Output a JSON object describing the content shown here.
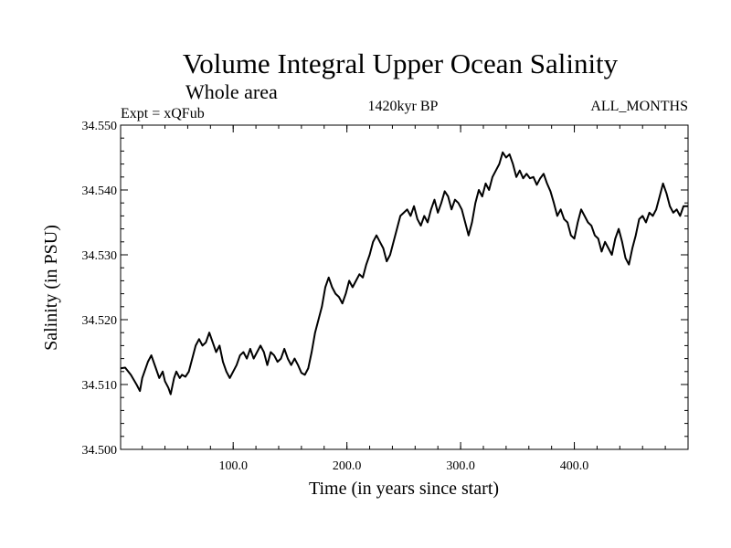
{
  "chart_data": {
    "type": "line",
    "title": "Volume Integral Upper Ocean Salinity",
    "subtitle": "Whole area",
    "experiment": "Expt = xQFub",
    "period": "1420kyr BP",
    "months": "ALL_MONTHS",
    "xlabel": "Time (in years since start)",
    "ylabel": "Salinity (in PSU)",
    "xlim": [
      1,
      500
    ],
    "ylim": [
      34.5,
      34.55
    ],
    "x_ticks": [
      {
        "value": 100,
        "label": "100.0"
      },
      {
        "value": 200,
        "label": "200.0"
      },
      {
        "value": 300,
        "label": "300.0"
      },
      {
        "value": 400,
        "label": "400.0"
      }
    ],
    "y_ticks": [
      {
        "value": 34.5,
        "label": "34.500"
      },
      {
        "value": 34.51,
        "label": "34.510"
      },
      {
        "value": 34.52,
        "label": "34.520"
      },
      {
        "value": 34.53,
        "label": "34.530"
      },
      {
        "value": 34.54,
        "label": "34.540"
      },
      {
        "value": 34.55,
        "label": "34.550"
      }
    ],
    "grid": false,
    "series": [
      {
        "name": "Salinity",
        "color": "#000000",
        "points": [
          [
            1,
            34.5125
          ],
          [
            5,
            34.5126
          ],
          [
            10,
            34.5115
          ],
          [
            15,
            34.51
          ],
          [
            18,
            34.509
          ],
          [
            20,
            34.511
          ],
          [
            25,
            34.5135
          ],
          [
            28,
            34.5145
          ],
          [
            32,
            34.5125
          ],
          [
            35,
            34.511
          ],
          [
            38,
            34.512
          ],
          [
            40,
            34.5105
          ],
          [
            43,
            34.5095
          ],
          [
            45,
            34.5085
          ],
          [
            48,
            34.511
          ],
          [
            50,
            34.512
          ],
          [
            53,
            34.511
          ],
          [
            55,
            34.5115
          ],
          [
            58,
            34.5112
          ],
          [
            61,
            34.512
          ],
          [
            64,
            34.514
          ],
          [
            67,
            34.516
          ],
          [
            70,
            34.517
          ],
          [
            73,
            34.516
          ],
          [
            76,
            34.5165
          ],
          [
            79,
            34.518
          ],
          [
            82,
            34.5165
          ],
          [
            85,
            34.515
          ],
          [
            88,
            34.516
          ],
          [
            91,
            34.5135
          ],
          [
            94,
            34.512
          ],
          [
            97,
            34.511
          ],
          [
            100,
            34.512
          ],
          [
            103,
            34.513
          ],
          [
            106,
            34.5145
          ],
          [
            109,
            34.515
          ],
          [
            112,
            34.514
          ],
          [
            115,
            34.5155
          ],
          [
            118,
            34.514
          ],
          [
            121,
            34.515
          ],
          [
            124,
            34.516
          ],
          [
            127,
            34.515
          ],
          [
            130,
            34.513
          ],
          [
            133,
            34.515
          ],
          [
            136,
            34.5145
          ],
          [
            139,
            34.5135
          ],
          [
            142,
            34.514
          ],
          [
            145,
            34.5155
          ],
          [
            148,
            34.514
          ],
          [
            151,
            34.513
          ],
          [
            154,
            34.514
          ],
          [
            157,
            34.513
          ],
          [
            160,
            34.5118
          ],
          [
            163,
            34.5115
          ],
          [
            166,
            34.5125
          ],
          [
            169,
            34.515
          ],
          [
            172,
            34.518
          ],
          [
            175,
            34.52
          ],
          [
            178,
            34.522
          ],
          [
            181,
            34.525
          ],
          [
            184,
            34.5265
          ],
          [
            187,
            34.525
          ],
          [
            190,
            34.524
          ],
          [
            193,
            34.5235
          ],
          [
            196,
            34.5225
          ],
          [
            199,
            34.524
          ],
          [
            202,
            34.526
          ],
          [
            205,
            34.525
          ],
          [
            208,
            34.526
          ],
          [
            211,
            34.527
          ],
          [
            214,
            34.5265
          ],
          [
            217,
            34.5285
          ],
          [
            220,
            34.53
          ],
          [
            223,
            34.532
          ],
          [
            226,
            34.533
          ],
          [
            229,
            34.532
          ],
          [
            232,
            34.531
          ],
          [
            235,
            34.529
          ],
          [
            238,
            34.53
          ],
          [
            241,
            34.532
          ],
          [
            244,
            34.534
          ],
          [
            247,
            34.536
          ],
          [
            250,
            34.5365
          ],
          [
            253,
            34.537
          ],
          [
            256,
            34.536
          ],
          [
            259,
            34.5375
          ],
          [
            262,
            34.5355
          ],
          [
            265,
            34.5345
          ],
          [
            268,
            34.536
          ],
          [
            271,
            34.535
          ],
          [
            274,
            34.537
          ],
          [
            277,
            34.5385
          ],
          [
            280,
            34.5365
          ],
          [
            283,
            34.538
          ],
          [
            286,
            34.5398
          ],
          [
            289,
            34.539
          ],
          [
            292,
            34.537
          ],
          [
            295,
            34.5385
          ],
          [
            298,
            34.538
          ],
          [
            301,
            34.537
          ],
          [
            304,
            34.535
          ],
          [
            307,
            34.533
          ],
          [
            310,
            34.535
          ],
          [
            313,
            34.538
          ],
          [
            316,
            34.54
          ],
          [
            319,
            34.539
          ],
          [
            322,
            34.541
          ],
          [
            325,
            34.54
          ],
          [
            328,
            34.542
          ],
          [
            331,
            34.543
          ],
          [
            334,
            34.544
          ],
          [
            337,
            34.5458
          ],
          [
            340,
            34.545
          ],
          [
            343,
            34.5455
          ],
          [
            346,
            34.544
          ],
          [
            349,
            34.542
          ],
          [
            352,
            34.543
          ],
          [
            355,
            34.5418
          ],
          [
            358,
            34.5425
          ],
          [
            361,
            34.5418
          ],
          [
            364,
            34.542
          ],
          [
            367,
            34.5408
          ],
          [
            370,
            34.5418
          ],
          [
            373,
            34.5425
          ],
          [
            376,
            34.541
          ],
          [
            379,
            34.5398
          ],
          [
            382,
            34.538
          ],
          [
            385,
            34.536
          ],
          [
            388,
            34.537
          ],
          [
            391,
            34.5355
          ],
          [
            394,
            34.535
          ],
          [
            397,
            34.533
          ],
          [
            400,
            34.5325
          ],
          [
            403,
            34.535
          ],
          [
            406,
            34.537
          ],
          [
            409,
            34.536
          ],
          [
            412,
            34.535
          ],
          [
            415,
            34.5345
          ],
          [
            418,
            34.533
          ],
          [
            421,
            34.5325
          ],
          [
            424,
            34.5305
          ],
          [
            427,
            34.532
          ],
          [
            430,
            34.531
          ],
          [
            433,
            34.53
          ],
          [
            436,
            34.5325
          ],
          [
            439,
            34.534
          ],
          [
            442,
            34.532
          ],
          [
            445,
            34.5295
          ],
          [
            448,
            34.5285
          ],
          [
            451,
            34.531
          ],
          [
            454,
            34.533
          ],
          [
            457,
            34.5355
          ],
          [
            460,
            34.536
          ],
          [
            463,
            34.535
          ],
          [
            466,
            34.5365
          ],
          [
            469,
            34.536
          ],
          [
            472,
            34.537
          ],
          [
            475,
            34.539
          ],
          [
            478,
            34.541
          ],
          [
            481,
            34.5395
          ],
          [
            484,
            34.5375
          ],
          [
            487,
            34.5365
          ],
          [
            490,
            34.537
          ],
          [
            493,
            34.536
          ],
          [
            496,
            34.5375
          ],
          [
            500,
            34.5375
          ]
        ]
      }
    ]
  }
}
